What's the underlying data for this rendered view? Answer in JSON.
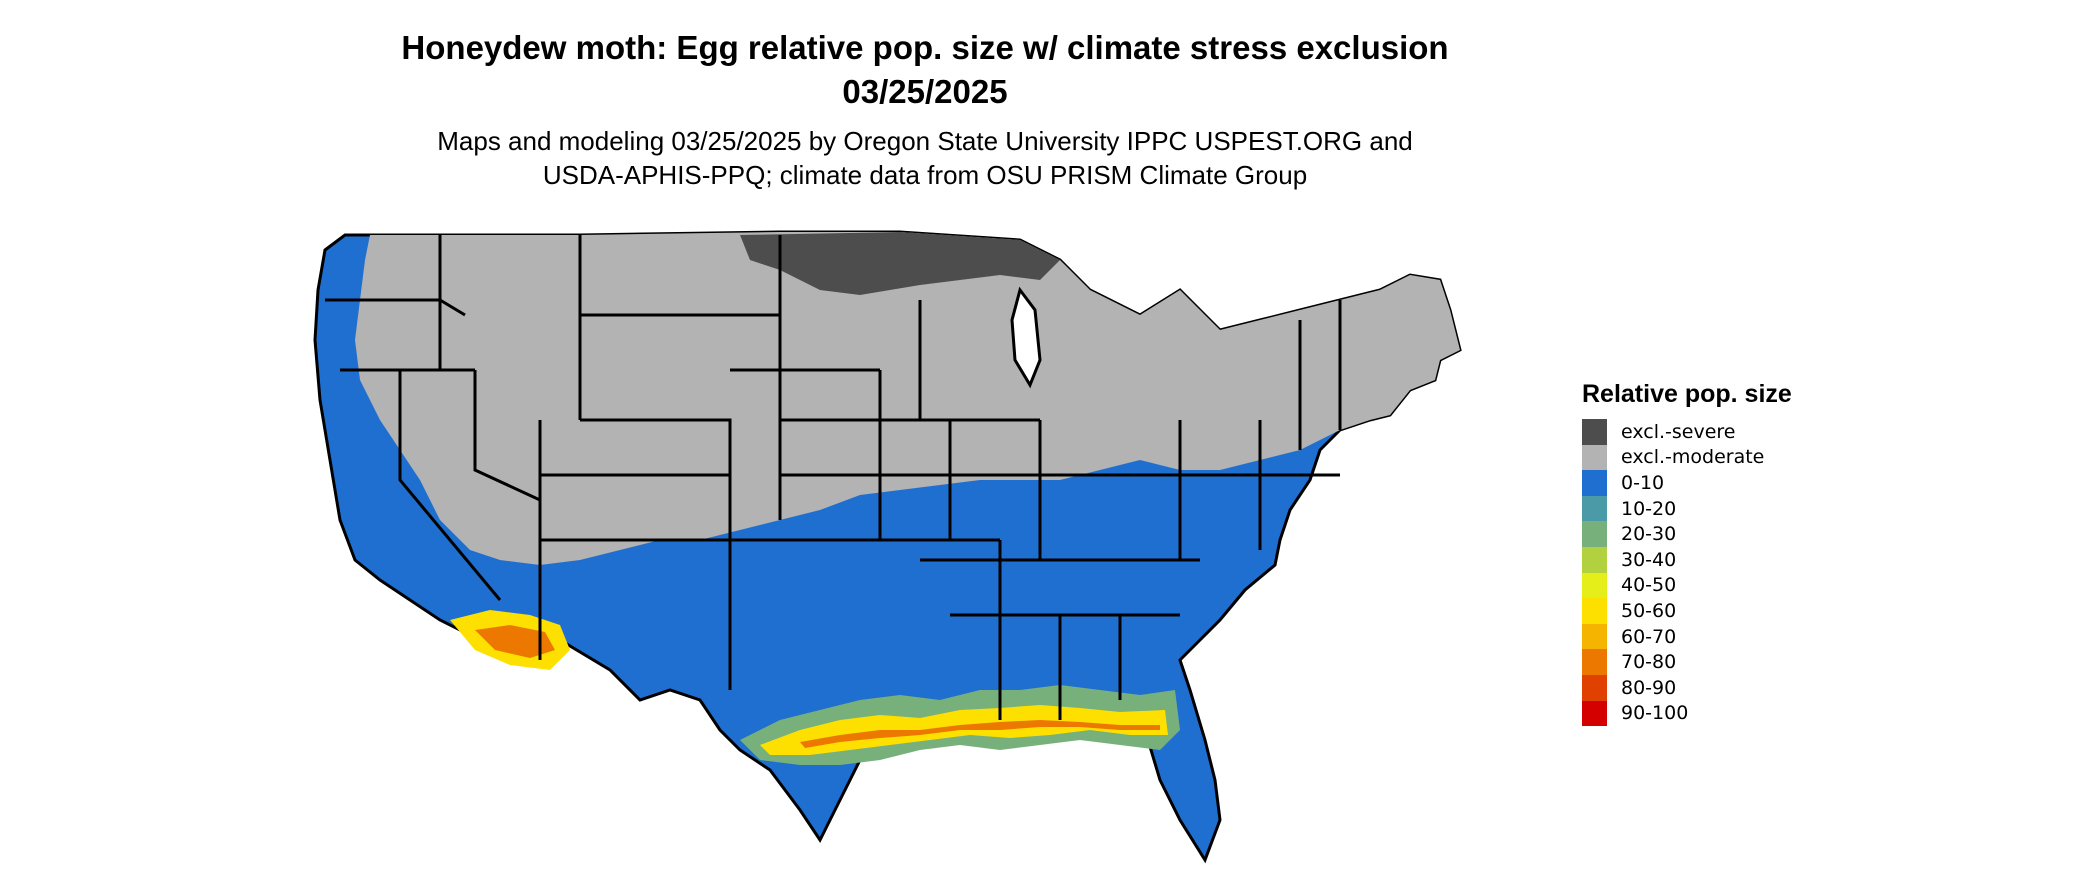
{
  "title": {
    "line1": "Honeydew moth: Egg relative pop. size w/ climate stress exclusion",
    "line2": "03/25/2025"
  },
  "subtitle": {
    "line1": "Maps and modeling 03/25/2025 by Oregon State University IPPC USPEST.ORG and",
    "line2": "USDA-APHIS-PPQ; climate data from OSU PRISM Climate Group"
  },
  "legend": {
    "title": "Relative pop. size",
    "items": [
      {
        "label": "excl.-severe",
        "color": "#4d4d4d"
      },
      {
        "label": "excl.-moderate",
        "color": "#b3b3b3"
      },
      {
        "label": "0-10",
        "color": "#1f6fd0"
      },
      {
        "label": "10-20",
        "color": "#4a9aa8"
      },
      {
        "label": "20-30",
        "color": "#78b07c"
      },
      {
        "label": "30-40",
        "color": "#b2d13f"
      },
      {
        "label": "40-50",
        "color": "#e6ee1a"
      },
      {
        "label": "50-60",
        "color": "#fde000"
      },
      {
        "label": "60-70",
        "color": "#f4b400"
      },
      {
        "label": "70-80",
        "color": "#ec7800"
      },
      {
        "label": "80-90",
        "color": "#e04000"
      },
      {
        "label": "90-100",
        "color": "#d40000"
      }
    ]
  },
  "map": {
    "region": "Contiguous United States",
    "colors": {
      "severe": "#4d4d4d",
      "moderate": "#b3b3b3",
      "low": "#1f6fd0",
      "mid": "#78b07c",
      "yellow": "#fde000",
      "orange": "#ec7800",
      "red": "#e04000",
      "border": "#000000"
    }
  }
}
